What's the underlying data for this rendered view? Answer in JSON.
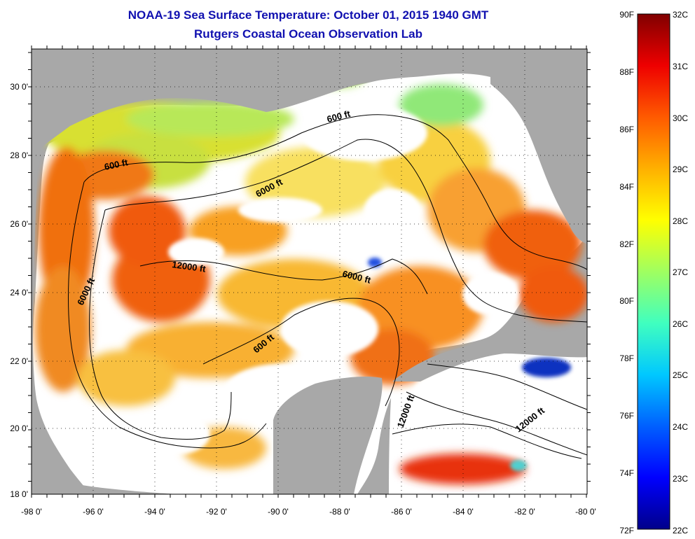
{
  "title": "NOAA-19 Sea Surface Temperature:  October 01, 2015 1940 GMT",
  "subtitle": "Rutgers Coastal Ocean Observation Lab",
  "lon_ticks": [
    "-98 0'",
    "-96 0'",
    "-94 0'",
    "-92 0'",
    "-90 0'",
    "-88 0'",
    "-86 0'",
    "-84 0'",
    "-82 0'",
    "-80 0'"
  ],
  "lat_ticks": [
    "30 0'",
    "28 0'",
    "26 0'",
    "24 0'",
    "22 0'",
    "20 0'",
    "18 0'"
  ],
  "contour_labels": [
    "600 ft",
    "600 ft",
    "6000 ft",
    "12000 ft",
    "6000 ft",
    "6000 ft",
    "600 ft",
    "12000 ft",
    "12000 ft"
  ],
  "colorbar_f": [
    "90F",
    "88F",
    "86F",
    "84F",
    "82F",
    "80F",
    "78F",
    "76F",
    "74F",
    "72F"
  ],
  "colorbar_c": [
    "32C",
    "31C",
    "30C",
    "29C",
    "28C",
    "27C",
    "26C",
    "25C",
    "24C",
    "23C",
    "22C"
  ],
  "colors": {
    "land": "#a8a8a8",
    "cloud": "#ffffff",
    "title": "#1010b0"
  }
}
